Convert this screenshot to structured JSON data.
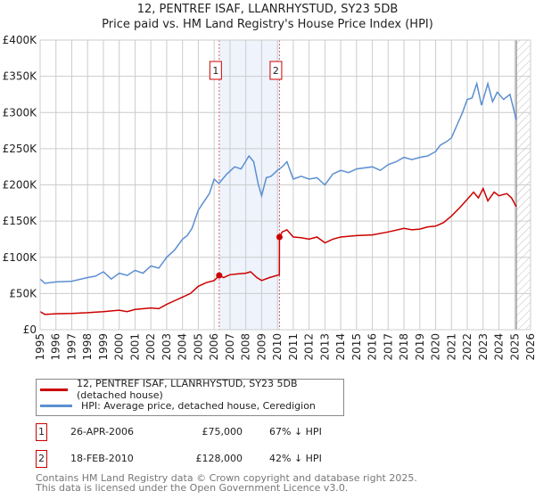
{
  "title": "12, PENTREF ISAF, LLANRHYSTUD, SY23 5DB",
  "subtitle": "Price paid vs. HM Land Registry's House Price Index (HPI)",
  "chart_data": {
    "type": "line",
    "ylim": [
      0,
      400000
    ],
    "xlim": [
      1995,
      2026
    ],
    "yticks": [
      {
        "v": 0,
        "label": "£0"
      },
      {
        "v": 50000,
        "label": "£50K"
      },
      {
        "v": 100000,
        "label": "£100K"
      },
      {
        "v": 150000,
        "label": "£150K"
      },
      {
        "v": 200000,
        "label": "£200K"
      },
      {
        "v": 250000,
        "label": "£250K"
      },
      {
        "v": 300000,
        "label": "£300K"
      },
      {
        "v": 350000,
        "label": "£350K"
      },
      {
        "v": 400000,
        "label": "£400K"
      }
    ],
    "xticks": [
      "1995",
      "1996",
      "1997",
      "1998",
      "1999",
      "2000",
      "2001",
      "2002",
      "2003",
      "2004",
      "2005",
      "2006",
      "2007",
      "2008",
      "2009",
      "2010",
      "2011",
      "2012",
      "2013",
      "2014",
      "2015",
      "2016",
      "2017",
      "2018",
      "2019",
      "2020",
      "2021",
      "2022",
      "2023",
      "2024",
      "2025",
      "2026"
    ],
    "grid": true,
    "shaded_range": [
      2006.32,
      2010.13
    ],
    "forecast_hatch_from": 2025.1,
    "series": [
      {
        "name": "12, PENTREF ISAF, LLANRHYSTUD, SY23 5DB (detached house)",
        "color": "#cc0000",
        "x": [
          1995,
          1995.3,
          1996,
          1997,
          1998,
          1999,
          2000,
          2000.5,
          2001,
          2002,
          2002.5,
          2003,
          2003.5,
          2004,
          2004.5,
          2005,
          2005.5,
          2006,
          2006.32,
          2006.6,
          2007,
          2007.5,
          2008,
          2008.3,
          2008.7,
          2009,
          2009.5,
          2010.12,
          2010.13,
          2010.3,
          2010.6,
          2011,
          2011.5,
          2012,
          2012.5,
          2013,
          2013.5,
          2014,
          2015,
          2016,
          2017,
          2018,
          2018.5,
          2019,
          2019.5,
          2020,
          2020.5,
          2021,
          2021.5,
          2022,
          2022.4,
          2022.7,
          2023,
          2023.3,
          2023.7,
          2024,
          2024.5,
          2024.8,
          2025.1
        ],
        "y": [
          25000,
          21000,
          22000,
          22500,
          23500,
          25000,
          27000,
          25000,
          28000,
          30000,
          29000,
          35000,
          40000,
          45000,
          50000,
          60000,
          65000,
          68000,
          75000,
          72000,
          76000,
          77000,
          78000,
          80000,
          72000,
          68000,
          72000,
          76000,
          128000,
          135000,
          138000,
          128000,
          127000,
          125000,
          128000,
          120000,
          125000,
          128000,
          130000,
          131000,
          135000,
          140000,
          138000,
          139000,
          142000,
          143000,
          148000,
          157000,
          168000,
          180000,
          190000,
          182000,
          195000,
          178000,
          190000,
          185000,
          188000,
          182000,
          170000
        ]
      },
      {
        "name": "HPI: Average price, detached house, Ceredigion",
        "color": "#5b8fd1",
        "x": [
          1995,
          1995.3,
          1996,
          1997,
          1998,
          1998.5,
          1999,
          1999.5,
          2000,
          2000.5,
          2001,
          2001.5,
          2002,
          2002.5,
          2003,
          2003.5,
          2004,
          2004.3,
          2004.6,
          2005,
          2005.3,
          2005.7,
          2006,
          2006.3,
          2006.8,
          2007.3,
          2007.7,
          2008.2,
          2008.5,
          2008.8,
          2009,
          2009.3,
          2009.6,
          2010,
          2010.3,
          2010.6,
          2011,
          2011.5,
          2012,
          2012.5,
          2013,
          2013.5,
          2014,
          2014.5,
          2015,
          2016,
          2016.5,
          2017,
          2017.5,
          2018,
          2018.5,
          2019,
          2019.5,
          2020,
          2020.3,
          2020.7,
          2021,
          2021.3,
          2021.7,
          2022,
          2022.3,
          2022.6,
          2022.9,
          2023.3,
          2023.6,
          2023.9,
          2024.3,
          2024.7,
          2025.1
        ],
        "y": [
          70000,
          64000,
          66000,
          67000,
          72000,
          74000,
          80000,
          70000,
          78000,
          75000,
          82000,
          78000,
          88000,
          85000,
          100000,
          110000,
          125000,
          130000,
          140000,
          165000,
          175000,
          188000,
          208000,
          202000,
          215000,
          225000,
          222000,
          240000,
          232000,
          200000,
          185000,
          210000,
          212000,
          220000,
          225000,
          232000,
          208000,
          212000,
          208000,
          210000,
          200000,
          215000,
          220000,
          217000,
          222000,
          225000,
          220000,
          228000,
          232000,
          238000,
          235000,
          238000,
          240000,
          246000,
          255000,
          260000,
          265000,
          280000,
          300000,
          318000,
          320000,
          340000,
          310000,
          340000,
          315000,
          328000,
          318000,
          325000,
          290000
        ]
      }
    ],
    "annotations": [
      {
        "id": "1",
        "x": 2006.32,
        "y": 75000
      },
      {
        "id": "2",
        "x": 2010.13,
        "y": 128000
      }
    ]
  },
  "legend": [
    {
      "label": "12, PENTREF ISAF, LLANRHYSTUD, SY23 5DB (detached house)",
      "color": "#cc0000"
    },
    {
      "label": "HPI: Average price, detached house, Ceredigion",
      "color": "#5b8fd1"
    }
  ],
  "transactions": [
    {
      "id": "1",
      "date": "26-APR-2006",
      "price": "£75,000",
      "hpi": "67% ↓ HPI"
    },
    {
      "id": "2",
      "date": "18-FEB-2010",
      "price": "£128,000",
      "hpi": "42% ↓ HPI"
    }
  ],
  "footer": {
    "line1": "Contains HM Land Registry data © Crown copyright and database right 2025.",
    "line2": "This data is licensed under the Open Government Licence v3.0."
  }
}
